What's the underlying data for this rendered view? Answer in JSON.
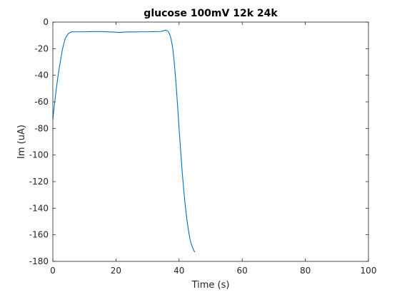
{
  "chart_data": {
    "type": "line",
    "title": "glucose 100mV 12k 24k",
    "xlabel": "Time (s)",
    "ylabel": "Im (uA)",
    "xlim": [
      0,
      100
    ],
    "ylim": [
      -180,
      0
    ],
    "xticks": [
      0,
      20,
      40,
      60,
      80,
      100
    ],
    "yticks": [
      0,
      -20,
      -40,
      -60,
      -80,
      -100,
      -120,
      -140,
      -160,
      -180
    ],
    "grid": false,
    "legend": "none",
    "series": [
      {
        "color": "#0072bd",
        "x": [
          0,
          0.5,
          1,
          1.5,
          2,
          2.5,
          3,
          3.5,
          4,
          4.5,
          5,
          5.5,
          6,
          7,
          8,
          10,
          12,
          14,
          16,
          18,
          20,
          21,
          22,
          24,
          26,
          28,
          30,
          32,
          34,
          35,
          35.5,
          36,
          36.5,
          37,
          37.5,
          38,
          38.5,
          39,
          39.5,
          40,
          40.5,
          41,
          41.5,
          42,
          42.5,
          43,
          43.5,
          44,
          44.5,
          45
        ],
        "y": [
          -73,
          -62,
          -52,
          -43,
          -35,
          -28,
          -21,
          -16,
          -12,
          -10,
          -8.5,
          -7.8,
          -7.4,
          -7.3,
          -7.3,
          -7.3,
          -7.2,
          -7.1,
          -7.2,
          -7.4,
          -7.6,
          -7.8,
          -7.6,
          -7.4,
          -7.4,
          -7.3,
          -7.3,
          -7.2,
          -7.1,
          -6.6,
          -6.1,
          -6.2,
          -7.0,
          -9.0,
          -13,
          -20,
          -31,
          -45,
          -62,
          -80,
          -97,
          -113,
          -127,
          -139,
          -149,
          -157,
          -164,
          -168,
          -171,
          -173
        ]
      }
    ]
  }
}
